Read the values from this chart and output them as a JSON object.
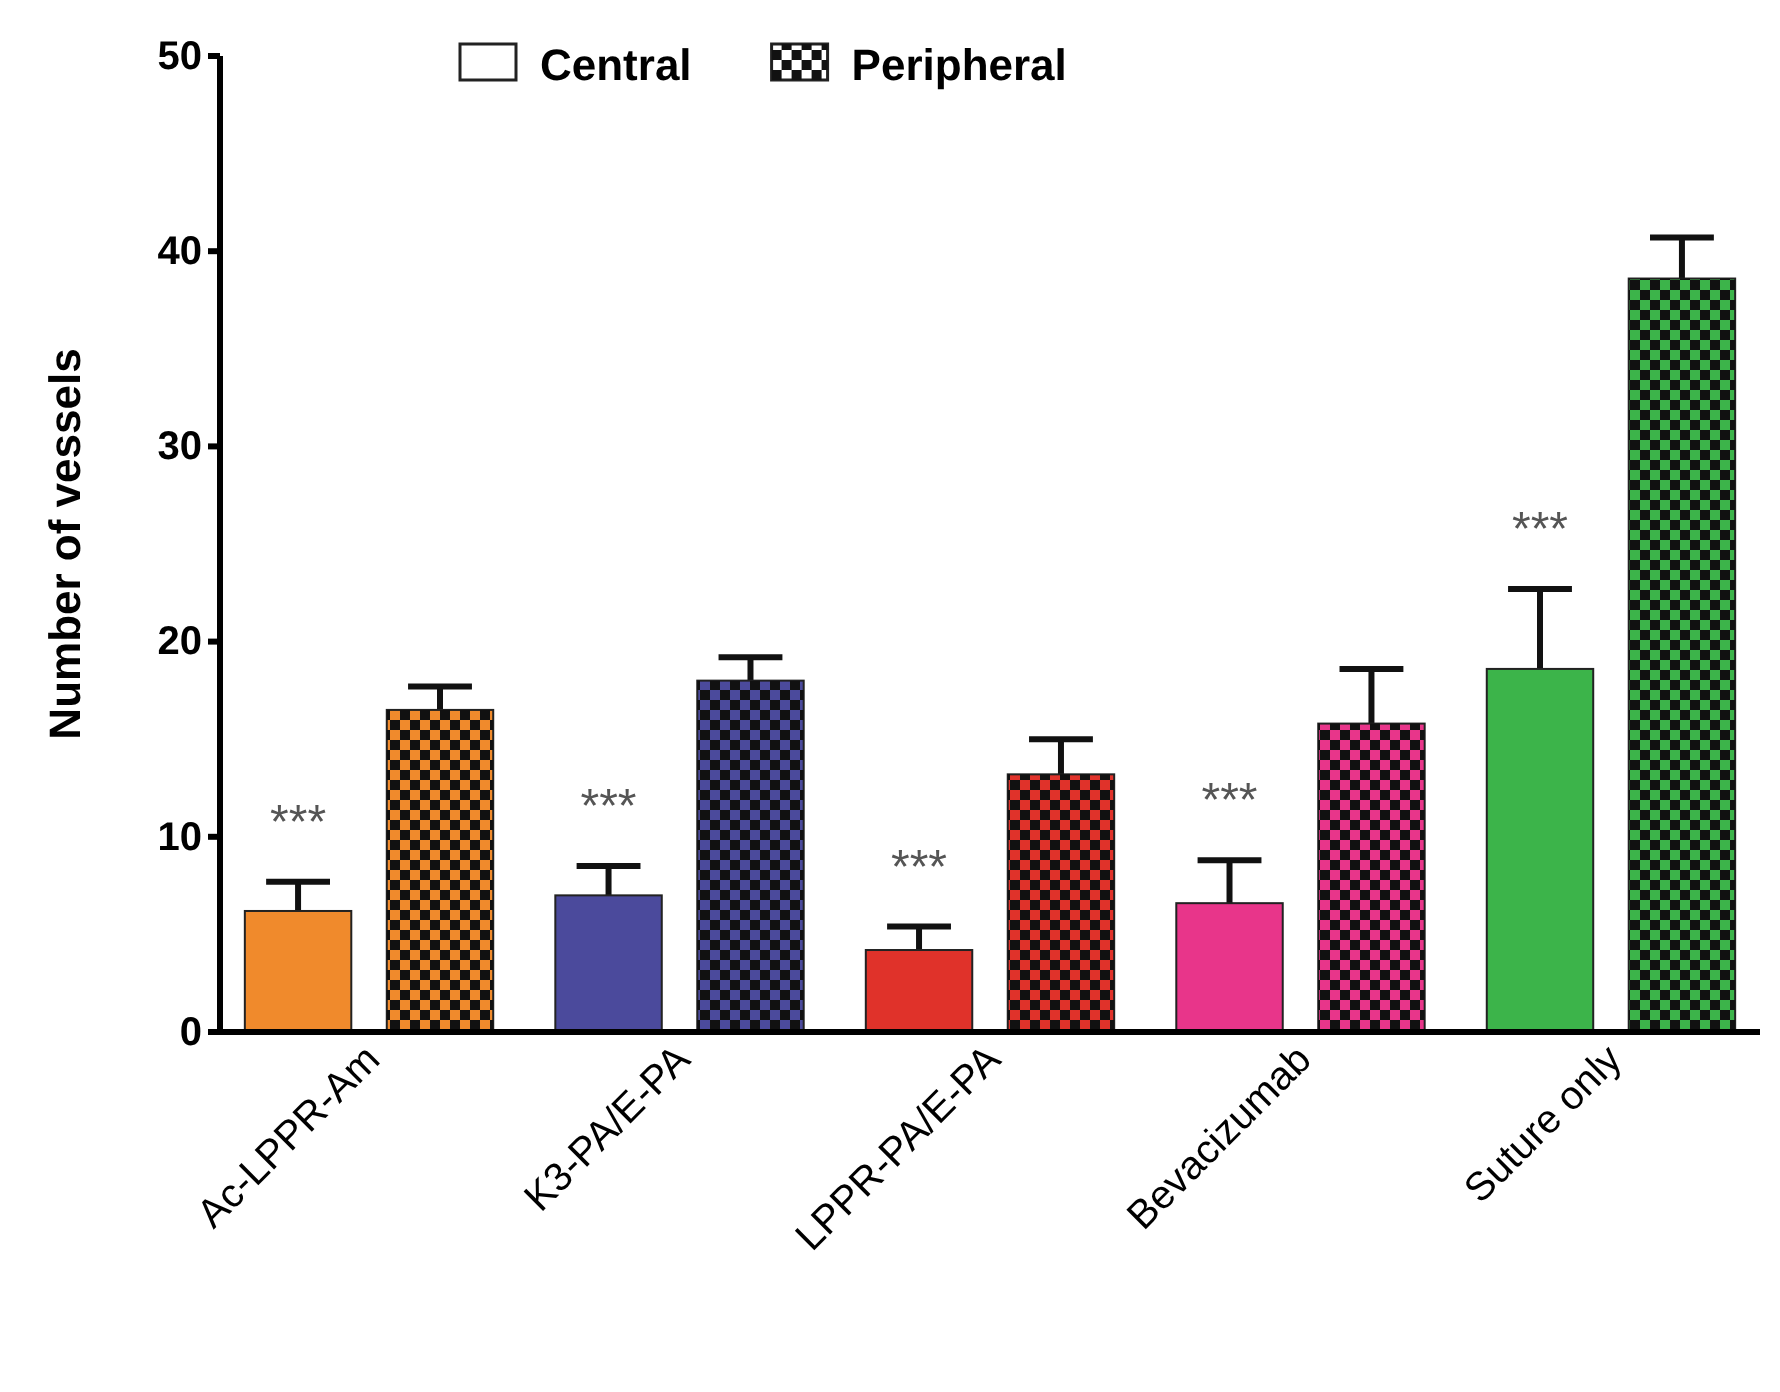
{
  "chart_data": {
    "type": "bar",
    "ylabel": "Number of vessels",
    "categories": [
      "Ac-LPPR-Am",
      "K3-PA/E-PA",
      "LPPR-PA/E-PA",
      "Bevacizumab",
      "Suture only"
    ],
    "series": [
      {
        "name": "Central",
        "colors": [
          "#f08a2c",
          "#4b4a9c",
          "#e0322a",
          "#e8358a",
          "#3cb44a"
        ],
        "values": [
          6.2,
          7.0,
          4.2,
          6.6,
          18.6
        ],
        "errors": [
          [
            6.2,
            7.7
          ],
          [
            7.0,
            8.5
          ],
          [
            4.2,
            5.4
          ],
          [
            6.6,
            8.8
          ],
          [
            18.6,
            22.7
          ]
        ]
      },
      {
        "name": "Peripheral",
        "colors": [
          "#f08a2c",
          "#4b4a9c",
          "#e0322a",
          "#e8358a",
          "#3cb44a"
        ],
        "values": [
          16.5,
          18.0,
          13.2,
          15.8,
          38.6
        ],
        "errors": [
          [
            16.5,
            17.7
          ],
          [
            18.0,
            19.2
          ],
          [
            13.2,
            15.0
          ],
          [
            15.8,
            18.6
          ],
          [
            38.6,
            40.7
          ]
        ]
      }
    ],
    "ylim": [
      0,
      50
    ],
    "yticks": [
      0,
      10,
      20,
      30,
      40,
      50
    ],
    "grid": false,
    "legend": "top",
    "annotations": [
      "***",
      "***",
      "***",
      "***",
      "***"
    ]
  }
}
